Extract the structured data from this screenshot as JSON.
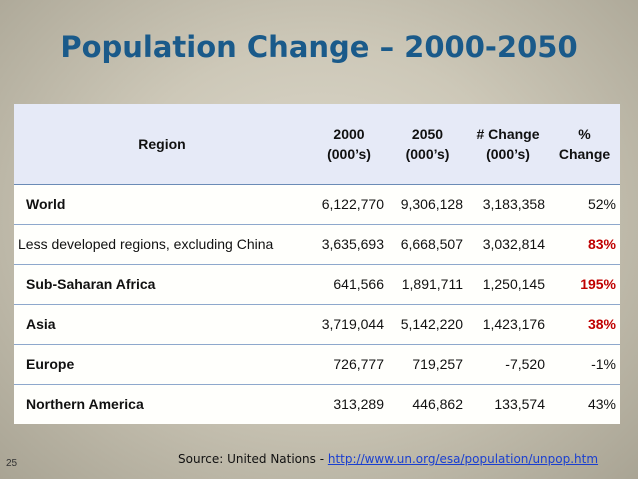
{
  "title": "Population Change – 2000-2050",
  "table": {
    "headers": {
      "region": "Region",
      "y2000_line1": "2000",
      "y2000_line2": "(000’s)",
      "y2050_line1": "2050",
      "y2050_line2": "(000’s)",
      "change_line1": "# Change",
      "change_line2": "(000’s)",
      "pct_line1": "%",
      "pct_line2": "Change"
    },
    "rows": [
      {
        "region": "World",
        "y2000": "6,122,770",
        "y2050": "9,306,128",
        "change": "3,183,358",
        "pct": "52%"
      },
      {
        "region": "Less developed regions, excluding China",
        "y2000": "3,635,693",
        "y2050": "6,668,507",
        "change": "3,032,814",
        "pct": "83%"
      },
      {
        "region": "Sub-Saharan Africa",
        "y2000": "641,566",
        "y2050": "1,891,711",
        "change": "1,250,145",
        "pct": "195%"
      },
      {
        "region": "Asia",
        "y2000": "3,719,044",
        "y2050": "5,142,220",
        "change": "1,423,176",
        "pct": "38%"
      },
      {
        "region": "Europe",
        "y2000": "726,777",
        "y2050": "719,257",
        "change": "-7,520",
        "pct": "-1%"
      },
      {
        "region": "Northern America",
        "y2000": "313,289",
        "y2050": "446,862",
        "change": "133,574",
        "pct": "43%"
      }
    ]
  },
  "footer": {
    "slide_number": "25",
    "source_prefix": "Source: United Nations - ",
    "source_link": "http://www.un.org/esa/population/unpop.htm"
  },
  "colors": {
    "title": "#1a5a8a",
    "highlight": "#c00000",
    "link": "#1a3fd0"
  }
}
